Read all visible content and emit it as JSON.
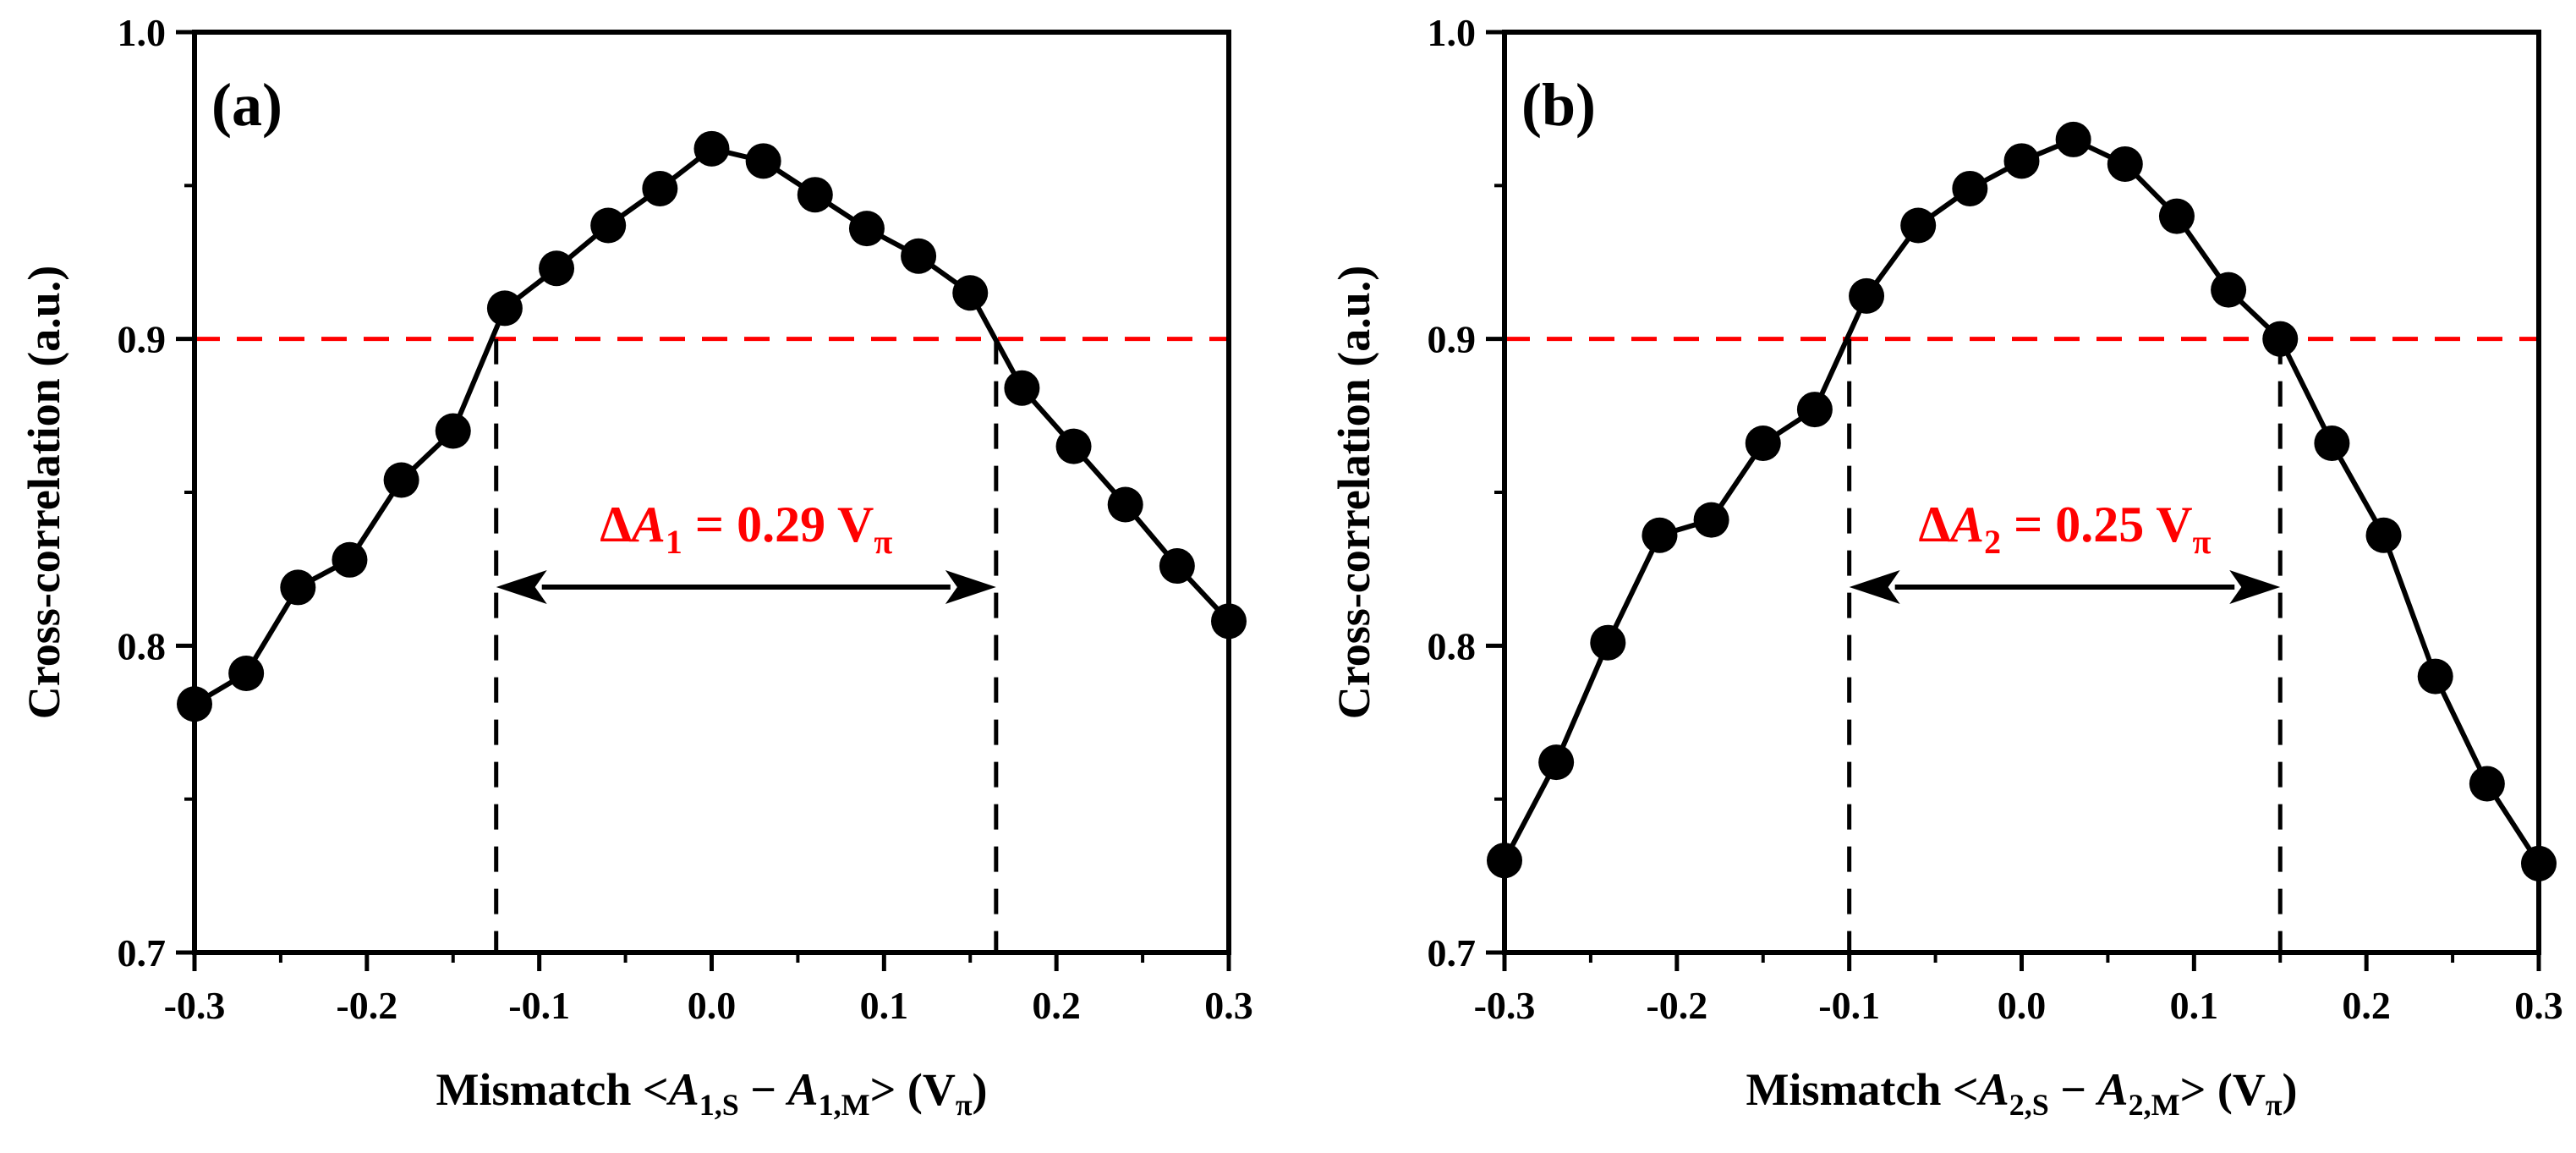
{
  "chart_data": [
    {
      "type": "line",
      "panel_label": "(a)",
      "xlabel": {
        "prefix": "Mismatch <",
        "var1": "A",
        "sub1": "1,S",
        "mid": " − ",
        "var2": "A",
        "sub2": "1,M",
        "suffix": "> (V",
        "unit_sub": "π",
        "close": ")"
      },
      "ylabel": "Cross-correlation (a.u.)",
      "xlim": [
        -0.3,
        0.3
      ],
      "ylim": [
        0.7,
        1.0
      ],
      "x_ticks": [
        "-0.3",
        "-0.2",
        "-0.1",
        "0.0",
        "0.1",
        "0.2",
        "0.3"
      ],
      "y_ticks": [
        "0.7",
        "0.8",
        "0.9",
        "1.0"
      ],
      "threshold": 0.9,
      "bounds": [
        -0.125,
        0.165
      ],
      "annotation": {
        "prefix": "Δ",
        "var": "A",
        "sub": "1",
        "value": " = 0.29 V",
        "unit_sub": "π"
      },
      "x": [
        -0.3,
        -0.27,
        -0.24,
        -0.21,
        -0.18,
        -0.15,
        -0.12,
        -0.09,
        -0.06,
        -0.03,
        0.0,
        0.03,
        0.06,
        0.09,
        0.12,
        0.15,
        0.18,
        0.21,
        0.24,
        0.27,
        0.3
      ],
      "y": [
        0.781,
        0.791,
        0.819,
        0.828,
        0.854,
        0.87,
        0.91,
        0.923,
        0.937,
        0.949,
        0.962,
        0.958,
        0.947,
        0.936,
        0.927,
        0.915,
        0.884,
        0.865,
        0.846,
        0.826,
        0.808
      ],
      "colors": {
        "data": "#000000",
        "threshold": "#ff0000",
        "annotation": "#ff0000"
      }
    },
    {
      "type": "line",
      "panel_label": "(b)",
      "xlabel": {
        "prefix": "Mismatch <",
        "var1": "A",
        "sub1": "2,S",
        "mid": " − ",
        "var2": "A",
        "sub2": "2,M",
        "suffix": "> (V",
        "unit_sub": "π",
        "close": ")"
      },
      "ylabel": "Cross-correlation (a.u.)",
      "xlim": [
        -0.3,
        0.3
      ],
      "ylim": [
        0.7,
        1.0
      ],
      "x_ticks": [
        "-0.3",
        "-0.2",
        "-0.1",
        "0.0",
        "0.1",
        "0.2",
        "0.3"
      ],
      "y_ticks": [
        "0.7",
        "0.8",
        "0.9",
        "1.0"
      ],
      "threshold": 0.9,
      "bounds": [
        -0.1,
        0.15
      ],
      "annotation": {
        "prefix": "Δ",
        "var": "A",
        "sub": "2",
        "value": " = 0.25 V",
        "unit_sub": "π"
      },
      "x": [
        -0.3,
        -0.27,
        -0.24,
        -0.21,
        -0.18,
        -0.15,
        -0.12,
        -0.09,
        -0.06,
        -0.03,
        0.0,
        0.03,
        0.06,
        0.09,
        0.12,
        0.15,
        0.18,
        0.21,
        0.24,
        0.27,
        0.3
      ],
      "y": [
        0.73,
        0.762,
        0.801,
        0.836,
        0.841,
        0.866,
        0.877,
        0.914,
        0.937,
        0.949,
        0.958,
        0.965,
        0.957,
        0.94,
        0.916,
        0.9,
        0.866,
        0.836,
        0.79,
        0.755,
        0.729
      ],
      "colors": {
        "data": "#000000",
        "threshold": "#ff0000",
        "annotation": "#ff0000"
      }
    }
  ]
}
